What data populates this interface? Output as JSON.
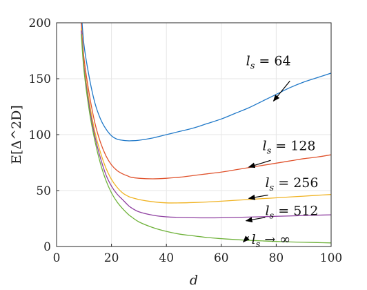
{
  "chart_data": {
    "type": "line",
    "title": "",
    "xlabel": "d",
    "ylabel": "E[Δ^2D]",
    "xlim": [
      0,
      100
    ],
    "ylim": [
      0,
      200
    ],
    "x_ticks": [
      0,
      20,
      40,
      60,
      80,
      100
    ],
    "y_ticks": [
      0,
      50,
      100,
      150,
      200
    ],
    "grid": true,
    "x": [
      9,
      10,
      12,
      14,
      16,
      18,
      20,
      22,
      24,
      26,
      27,
      30,
      35,
      40,
      45,
      50,
      55,
      60,
      65,
      70,
      75,
      80,
      85,
      90,
      95,
      100
    ],
    "series": [
      {
        "name": "l_s = 64",
        "color": "#1f78c8",
        "values": [
          210,
          180,
          150,
          128,
          114,
          105,
          99,
          96,
          95,
          94.5,
          94.5,
          95,
          97,
          100,
          103,
          106,
          110,
          114,
          119,
          124,
          130,
          136,
          142,
          147,
          151,
          155
        ]
      },
      {
        "name": "l_s = 128",
        "color": "#e0522c",
        "values": [
          200,
          168,
          135,
          110,
          93,
          81,
          73,
          68,
          65,
          63,
          62,
          61,
          60.5,
          61,
          62,
          63.5,
          65,
          66.5,
          68.5,
          70.5,
          72.5,
          74.5,
          76.5,
          78.5,
          80,
          82
        ]
      },
      {
        "name": "l_s = 256",
        "color": "#f0b323",
        "values": [
          195,
          162,
          128,
          102,
          84,
          70,
          60,
          53,
          48,
          45,
          44,
          42,
          40,
          39,
          39,
          39.3,
          39.8,
          40.5,
          41.3,
          42,
          42.8,
          43.5,
          44.3,
          45,
          45.8,
          46.5
        ]
      },
      {
        "name": "l_s = 512",
        "color": "#8e3fa0",
        "values": [
          193,
          160,
          124,
          98,
          79,
          64,
          54,
          47,
          42,
          37,
          35,
          31,
          28,
          26.5,
          26,
          25.7,
          25.6,
          25.7,
          26,
          26.3,
          26.6,
          27,
          27.3,
          27.7,
          28,
          28.3
        ]
      },
      {
        "name": "l_s → ∞",
        "color": "#6fb23a",
        "values": [
          190,
          157,
          120,
          94,
          74,
          59,
          48,
          40,
          34,
          29,
          27,
          22,
          17,
          13.5,
          11,
          9.5,
          8,
          7,
          6.2,
          5.5,
          5,
          4.5,
          4.1,
          3.8,
          3.5,
          3.2
        ]
      }
    ],
    "annotations": [
      {
        "text": "l_s = 64",
        "label_at": [
          69,
          162
        ],
        "arrow_from": [
          85,
          148
        ],
        "arrow_to": [
          79,
          130
        ]
      },
      {
        "text": "l_s = 128",
        "label_at": [
          75,
          86
        ],
        "arrow_from": [
          78,
          77
        ],
        "arrow_to": [
          70,
          71
        ]
      },
      {
        "text": "l_s = 256",
        "label_at": [
          76,
          53
        ],
        "arrow_from": [
          77,
          46
        ],
        "arrow_to": [
          70,
          43
        ]
      },
      {
        "text": "l_s = 512",
        "label_at": [
          76,
          28
        ],
        "arrow_from": [
          76,
          26
        ],
        "arrow_to": [
          69,
          23
        ]
      },
      {
        "text": "l_s → ∞",
        "label_at": [
          71,
          2.5
        ],
        "arrow_from": [
          70,
          9
        ],
        "arrow_to": [
          68,
          4
        ]
      }
    ]
  }
}
